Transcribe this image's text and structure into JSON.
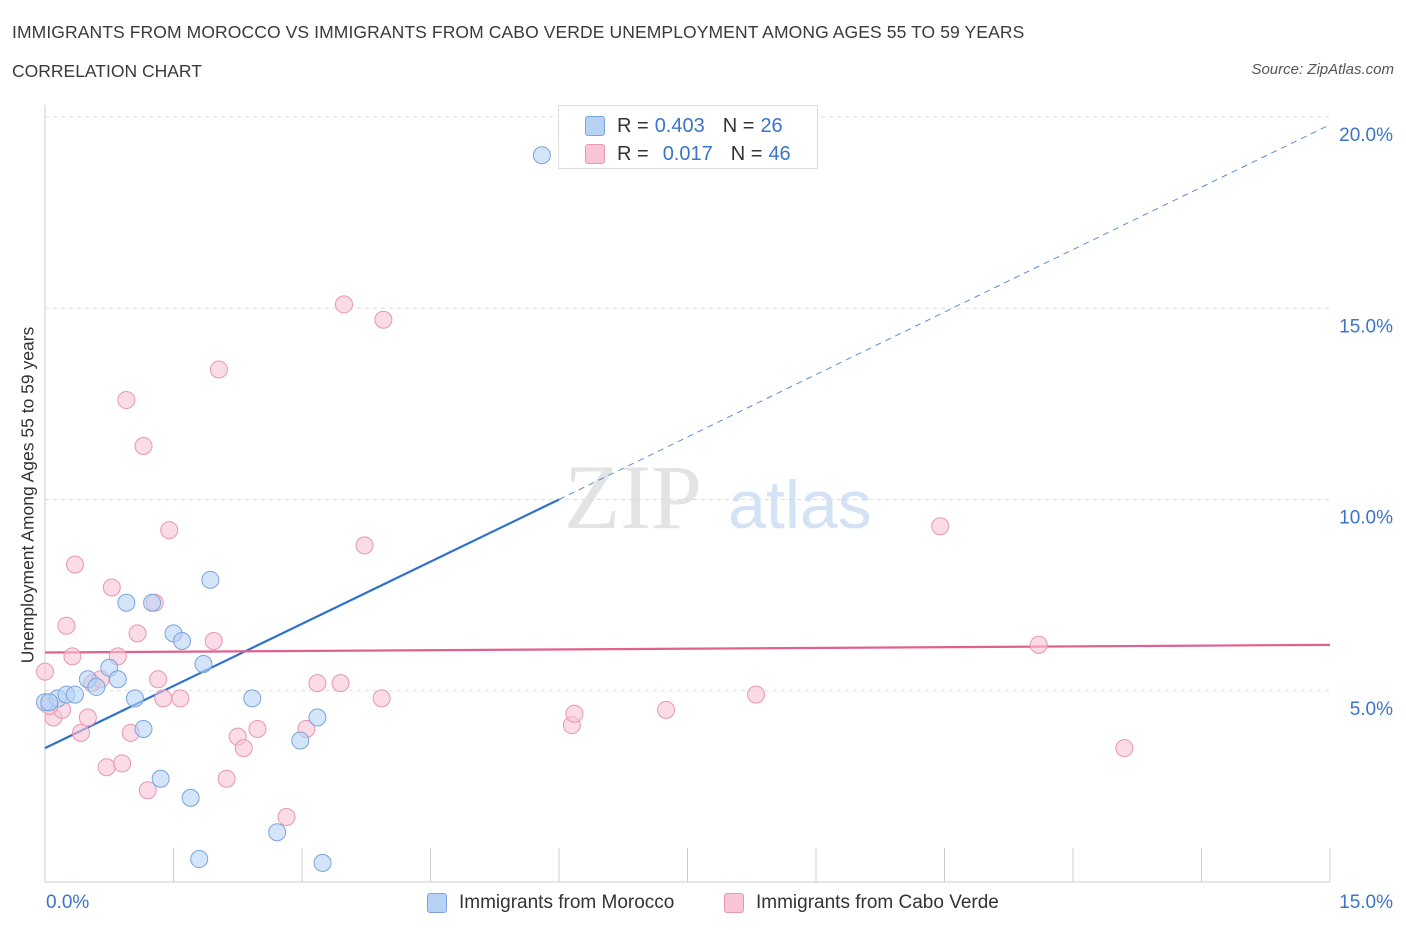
{
  "header": {
    "title": "IMMIGRANTS FROM MOROCCO VS IMMIGRANTS FROM CABO VERDE UNEMPLOYMENT AMONG AGES 55 TO 59 YEARS",
    "subtitle": "CORRELATION CHART",
    "source": "Source: ZipAtlas.com"
  },
  "legend_top": {
    "rows": [
      {
        "r_label": "R =",
        "r_value": "0.403",
        "n_label": "N =",
        "n_value": "26"
      },
      {
        "r_label": "R =",
        "r_value": "0.017",
        "n_label": "N =",
        "n_value": "46"
      }
    ]
  },
  "legend_bottom": {
    "items": [
      "Immigrants from Morocco",
      "Immigrants from Cabo Verde"
    ]
  },
  "colors": {
    "series1_fill": "#b8d2f5",
    "series1_stroke": "#7aa4de",
    "series1_line": "#2f72cc",
    "series2_fill": "#f8c5d6",
    "series2_stroke": "#e896b2",
    "series2_line": "#e0608e",
    "axis_label": "#3b74c9",
    "grid": "#dddddd"
  },
  "chart_data": {
    "type": "scatter",
    "title": "IMMIGRANTS FROM MOROCCO VS IMMIGRANTS FROM CABO VERDE UNEMPLOYMENT AMONG AGES 55 TO 59 YEARS",
    "xlabel": "",
    "ylabel": "Unemployment Among Ages 55 to 59 years",
    "xlim": [
      0,
      15
    ],
    "ylim": [
      0,
      20
    ],
    "x_tick_labels": [
      "0.0%",
      "15.0%"
    ],
    "y_ticks": [
      5,
      10,
      15,
      20
    ],
    "y_tick_labels": [
      "5.0%",
      "10.0%",
      "15.0%",
      "20.0%"
    ],
    "watermark": "ZIPatlas",
    "series": [
      {
        "name": "Immigrants from Morocco",
        "r": 0.403,
        "n": 26,
        "trend": {
          "x0": 0,
          "y0": 3.5,
          "x1": 6.0,
          "y1": 10.0,
          "dash_to_x": 15.0,
          "dash_to_y": 19.8
        },
        "points": [
          [
            0.0,
            4.7
          ],
          [
            0.15,
            4.8
          ],
          [
            0.25,
            4.9
          ],
          [
            0.35,
            4.9
          ],
          [
            0.5,
            5.3
          ],
          [
            0.6,
            5.1
          ],
          [
            0.75,
            5.6
          ],
          [
            0.85,
            5.3
          ],
          [
            0.95,
            7.3
          ],
          [
            1.05,
            4.8
          ],
          [
            1.15,
            4.0
          ],
          [
            1.25,
            7.3
          ],
          [
            1.35,
            2.7
          ],
          [
            1.5,
            6.5
          ],
          [
            1.6,
            6.3
          ],
          [
            1.7,
            2.2
          ],
          [
            1.8,
            0.6
          ],
          [
            1.85,
            5.7
          ],
          [
            1.93,
            7.9
          ],
          [
            2.42,
            4.8
          ],
          [
            2.71,
            1.3
          ],
          [
            2.98,
            3.7
          ],
          [
            3.18,
            4.3
          ],
          [
            3.24,
            0.5
          ],
          [
            5.8,
            19.0
          ],
          [
            0.05,
            4.7
          ]
        ]
      },
      {
        "name": "Immigrants from Cabo Verde",
        "r": 0.017,
        "n": 46,
        "trend": {
          "x0": 0,
          "y0": 6.0,
          "x1": 15.0,
          "y1": 6.2
        },
        "points": [
          [
            0.0,
            5.5
          ],
          [
            0.1,
            4.3
          ],
          [
            0.2,
            4.5
          ],
          [
            0.25,
            6.7
          ],
          [
            0.32,
            5.9
          ],
          [
            0.35,
            8.3
          ],
          [
            0.42,
            3.9
          ],
          [
            0.5,
            4.3
          ],
          [
            0.55,
            5.2
          ],
          [
            0.65,
            5.3
          ],
          [
            0.72,
            3.0
          ],
          [
            0.78,
            7.7
          ],
          [
            0.85,
            5.9
          ],
          [
            0.9,
            3.1
          ],
          [
            0.95,
            12.6
          ],
          [
            1.0,
            3.9
          ],
          [
            1.08,
            6.5
          ],
          [
            1.15,
            11.4
          ],
          [
            1.2,
            2.4
          ],
          [
            1.28,
            7.3
          ],
          [
            1.32,
            5.3
          ],
          [
            1.38,
            4.8
          ],
          [
            1.45,
            9.2
          ],
          [
            1.58,
            4.8
          ],
          [
            1.97,
            6.3
          ],
          [
            2.03,
            13.4
          ],
          [
            2.12,
            2.7
          ],
          [
            2.25,
            3.8
          ],
          [
            2.32,
            3.5
          ],
          [
            2.48,
            4.0
          ],
          [
            2.82,
            1.7
          ],
          [
            3.05,
            4.0
          ],
          [
            3.18,
            5.2
          ],
          [
            3.45,
            5.2
          ],
          [
            3.49,
            15.1
          ],
          [
            3.73,
            8.8
          ],
          [
            3.93,
            4.8
          ],
          [
            3.95,
            14.7
          ],
          [
            6.15,
            4.1
          ],
          [
            6.18,
            4.4
          ],
          [
            7.25,
            4.5
          ],
          [
            8.3,
            4.9
          ],
          [
            10.45,
            9.3
          ],
          [
            11.6,
            6.2
          ],
          [
            12.6,
            3.5
          ],
          [
            0.05,
            4.6
          ]
        ]
      }
    ]
  }
}
